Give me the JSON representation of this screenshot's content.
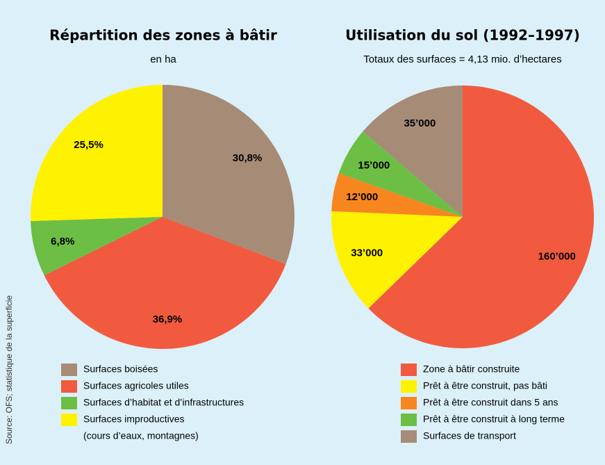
{
  "chart_data": [
    {
      "type": "pie",
      "title": "Répartition des zones à bâtir",
      "subtitle": "en ha",
      "categories": [
        "Surfaces boisées",
        "Surfaces agricoles utiles",
        "Surfaces d’habitat et d’infrastructures",
        "Surfaces improductives"
      ],
      "legend_notes": [
        null,
        null,
        null,
        "(cours d’eaux, montagnes)"
      ],
      "values": [
        30.8,
        36.9,
        6.8,
        25.5
      ],
      "value_labels": [
        "30,8%",
        "36,9%",
        "6,8%",
        "25,5%"
      ],
      "colors": [
        "#a68b77",
        "#f15a3e",
        "#6dbe45",
        "#fff200"
      ]
    },
    {
      "type": "pie",
      "title": "Utilisation du sol (1992–1997)",
      "subtitle": "Totaux des surfaces = 4,13 mio. d’hectares",
      "categories": [
        "Zone à bâtir construite",
        "Prêt à être construit, pas bâti",
        "Prêt à être construit dans 5 ans",
        "Prêt à être construit à long terme",
        "Surfaces de transport"
      ],
      "values": [
        160000,
        33000,
        12000,
        15000,
        35000
      ],
      "value_labels": [
        "160’000",
        "33’000",
        "12’000",
        "15’000",
        "35’000"
      ],
      "colors": [
        "#f15a3e",
        "#fff200",
        "#f7861e",
        "#6dbe45",
        "#a68b77"
      ]
    }
  ],
  "source": "Source: OFS; statistique de la superficie"
}
